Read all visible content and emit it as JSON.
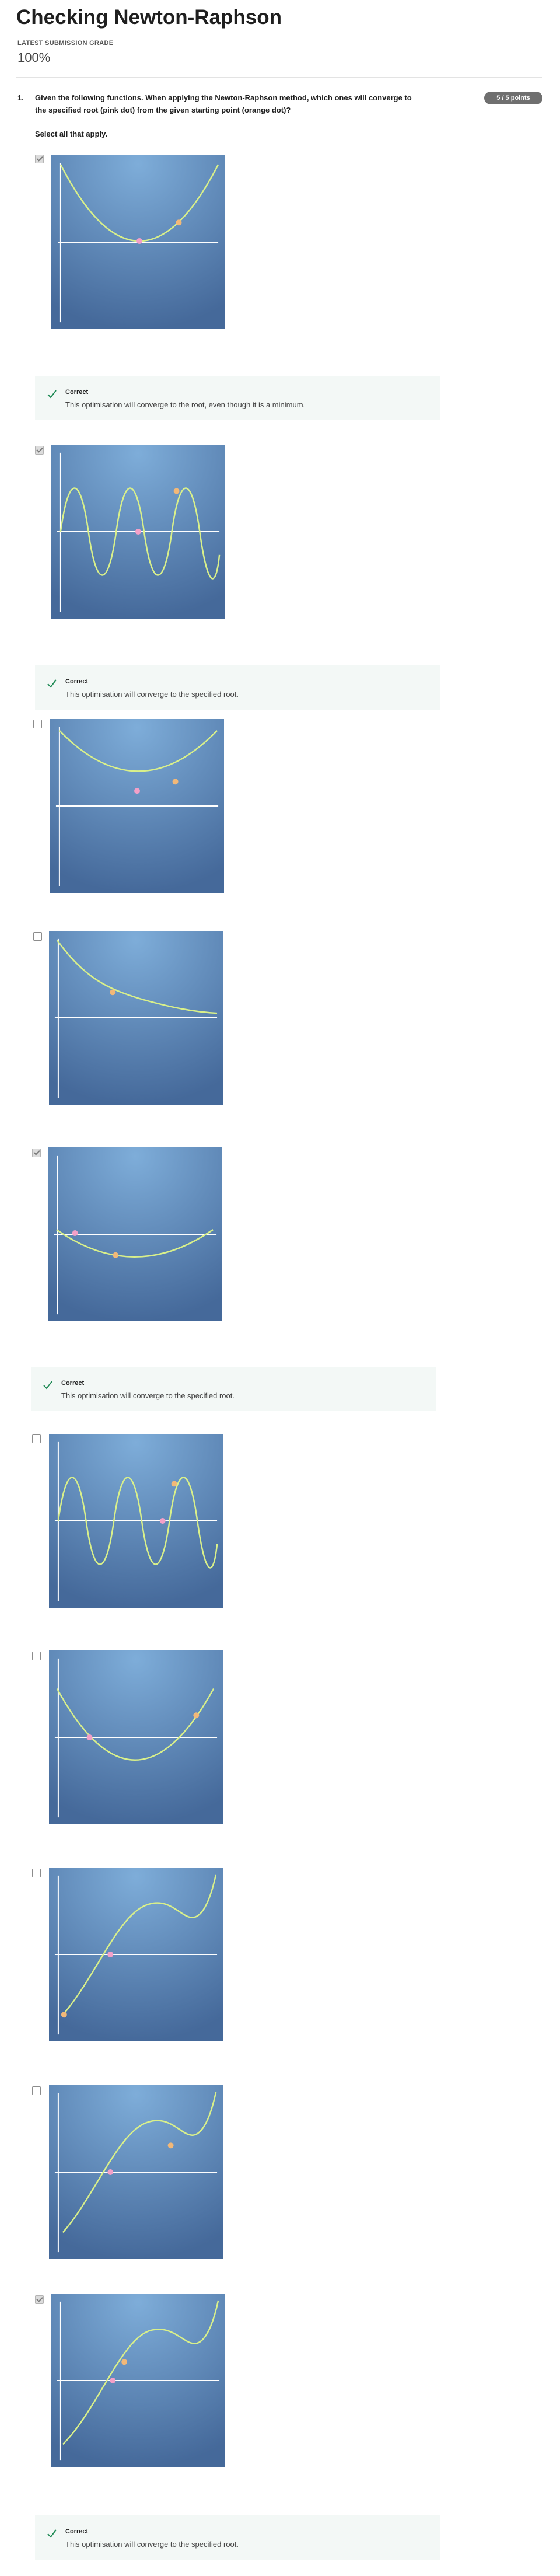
{
  "header": {
    "title": "Checking Newton-Raphson",
    "grade_label": "LATEST SUBMISSION GRADE",
    "grade_value": "100%"
  },
  "question": {
    "number": "1.",
    "text": "Given the following functions. When applying the Newton-Raphson method, which ones will converge to the specified root (pink dot) from the given starting point (orange dot)?",
    "hint": "Select all that apply.",
    "points": "5 / 5 points"
  },
  "colors": {
    "curve": "#d9f08a",
    "pink_dot": "#f3a0c8",
    "orange_dot": "#f2b878",
    "plot_light": "#7eadd9",
    "plot_dark": "#45699a",
    "feedback_bg": "#f3f8f6",
    "check_green": "#1f8a55"
  },
  "options": [
    {
      "checked": true,
      "plot_type": "parabola-min-root",
      "feedback": {
        "title": "Correct",
        "text": "This optimisation will converge to the root, even though it is a minimum."
      }
    },
    {
      "checked": true,
      "plot_type": "sine-wave",
      "feedback": {
        "title": "Correct",
        "text": "This optimisation will converge to the specified root."
      }
    },
    {
      "checked": false,
      "plot_type": "parabola-above-axis"
    },
    {
      "checked": false,
      "plot_type": "decaying-curve"
    },
    {
      "checked": true,
      "plot_type": "shallow-parabola-two-roots",
      "feedback": {
        "title": "Correct",
        "text": "This optimisation will converge to the specified root."
      }
    },
    {
      "checked": false,
      "plot_type": "sine-wave-far-start"
    },
    {
      "checked": false,
      "plot_type": "parabola-two-roots"
    },
    {
      "checked": false,
      "plot_type": "cubic-low-start"
    },
    {
      "checked": false,
      "plot_type": "cubic-bump-start"
    },
    {
      "checked": true,
      "plot_type": "cubic-near-start",
      "feedback": {
        "title": "Correct",
        "text": "This optimisation will converge to the specified root."
      }
    }
  ]
}
